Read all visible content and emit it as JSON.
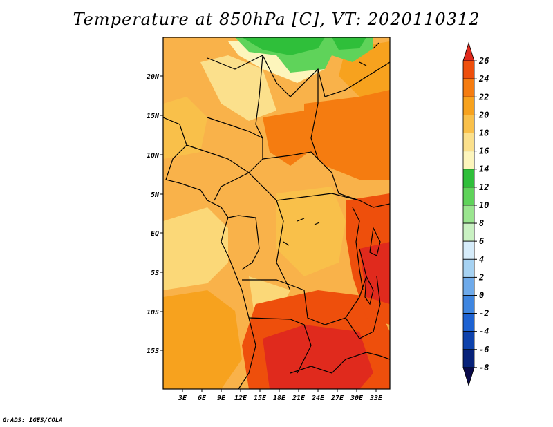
{
  "title": "Temperature at 850hPa [C], VT: 2020110312",
  "credit": "GrADS: IGES/COLA",
  "lat_ticks": [
    "20N",
    "15N",
    "10N",
    "5N",
    "EQ",
    "5S",
    "10S",
    "15S"
  ],
  "lon_ticks": [
    "3E",
    "6E",
    "9E",
    "12E",
    "15E",
    "18E",
    "21E",
    "24E",
    "27E",
    "30E",
    "33E"
  ],
  "colorbar": {
    "labels": [
      "26",
      "24",
      "22",
      "20",
      "18",
      "16",
      "14",
      "12",
      "10",
      "8",
      "6",
      "4",
      "2",
      "0",
      "-2",
      "-4",
      "-6",
      "-8"
    ],
    "colors": [
      "#e02a1d",
      "#ee4f0c",
      "#f57c10",
      "#f7a21e",
      "#f9c04a",
      "#fbe08c",
      "#fdf5bc",
      "#2fbf3a",
      "#5fd35a",
      "#9ae58f",
      "#c9f1c2",
      "#d6ecfa",
      "#a6d2f2",
      "#6eaaea",
      "#3f86e0",
      "#1d62d2",
      "#0e42ac",
      "#07227a",
      "#0a0a4a"
    ]
  }
}
